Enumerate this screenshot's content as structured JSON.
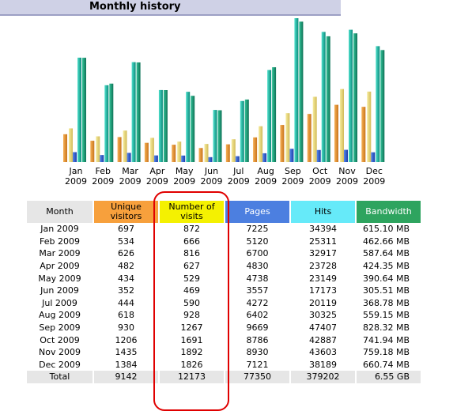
{
  "header": {
    "title": "Monthly history"
  },
  "colors": {
    "unique": "#f7a03c",
    "visits": "#f4f101",
    "pages": "#4c7fe0",
    "hits": "#66eaf9",
    "bandwidth": "#2ea45f",
    "month_header": "#e6e6e6",
    "highlight": "#e00000"
  },
  "chart_data": {
    "type": "bar",
    "categories": [
      "Jan 2009",
      "Feb 2009",
      "Mar 2009",
      "Apr 2009",
      "May 2009",
      "Jun 2009",
      "Jul 2009",
      "Aug 2009",
      "Sep 2009",
      "Oct 2009",
      "Nov 2009",
      "Dec 2009"
    ],
    "category_labels": [
      [
        "Jan",
        "2009"
      ],
      [
        "Feb",
        "2009"
      ],
      [
        "Mar",
        "2009"
      ],
      [
        "Apr",
        "2009"
      ],
      [
        "May",
        "2009"
      ],
      [
        "Jun",
        "2009"
      ],
      [
        "Jul",
        "2009"
      ],
      [
        "Aug",
        "2009"
      ],
      [
        "Sep",
        "2009"
      ],
      [
        "Oct",
        "2009"
      ],
      [
        "Nov",
        "2009"
      ],
      [
        "Dec",
        "2009"
      ]
    ],
    "series": [
      {
        "name": "Unique visitors",
        "values": [
          697,
          534,
          626,
          482,
          434,
          352,
          444,
          618,
          930,
          1206,
          1435,
          1384
        ]
      },
      {
        "name": "Number of visits",
        "values": [
          872,
          666,
          816,
          627,
          529,
          469,
          590,
          928,
          1267,
          1691,
          1892,
          1826
        ]
      },
      {
        "name": "Pages",
        "values": [
          7225,
          5120,
          6700,
          4830,
          4738,
          3557,
          4272,
          6402,
          9669,
          8786,
          8930,
          7121
        ]
      },
      {
        "name": "Hits",
        "values": [
          34394,
          25311,
          32917,
          23728,
          23149,
          17173,
          20119,
          30325,
          47407,
          42887,
          43603,
          38189
        ]
      },
      {
        "name": "Bandwidth",
        "values": [
          615.1,
          462.66,
          587.64,
          424.35,
          390.64,
          305.51,
          368.78,
          559.15,
          828.32,
          741.94,
          759.18,
          660.74
        ]
      }
    ]
  },
  "table": {
    "headers": {
      "month": "Month",
      "unique": "Unique visitors",
      "visits": "Number of visits",
      "pages": "Pages",
      "hits": "Hits",
      "bandwidth": "Bandwidth"
    },
    "rows": [
      {
        "month": "Jan 2009",
        "unique": "697",
        "visits": "872",
        "pages": "7225",
        "hits": "34394",
        "bandwidth": "615.10 MB"
      },
      {
        "month": "Feb 2009",
        "unique": "534",
        "visits": "666",
        "pages": "5120",
        "hits": "25311",
        "bandwidth": "462.66 MB"
      },
      {
        "month": "Mar 2009",
        "unique": "626",
        "visits": "816",
        "pages": "6700",
        "hits": "32917",
        "bandwidth": "587.64 MB"
      },
      {
        "month": "Apr 2009",
        "unique": "482",
        "visits": "627",
        "pages": "4830",
        "hits": "23728",
        "bandwidth": "424.35 MB"
      },
      {
        "month": "May 2009",
        "unique": "434",
        "visits": "529",
        "pages": "4738",
        "hits": "23149",
        "bandwidth": "390.64 MB"
      },
      {
        "month": "Jun 2009",
        "unique": "352",
        "visits": "469",
        "pages": "3557",
        "hits": "17173",
        "bandwidth": "305.51 MB"
      },
      {
        "month": "Jul 2009",
        "unique": "444",
        "visits": "590",
        "pages": "4272",
        "hits": "20119",
        "bandwidth": "368.78 MB"
      },
      {
        "month": "Aug 2009",
        "unique": "618",
        "visits": "928",
        "pages": "6402",
        "hits": "30325",
        "bandwidth": "559.15 MB"
      },
      {
        "month": "Sep 2009",
        "unique": "930",
        "visits": "1267",
        "pages": "9669",
        "hits": "47407",
        "bandwidth": "828.32 MB"
      },
      {
        "month": "Oct 2009",
        "unique": "1206",
        "visits": "1691",
        "pages": "8786",
        "hits": "42887",
        "bandwidth": "741.94 MB"
      },
      {
        "month": "Nov 2009",
        "unique": "1435",
        "visits": "1892",
        "pages": "8930",
        "hits": "43603",
        "bandwidth": "759.18 MB"
      },
      {
        "month": "Dec 2009",
        "unique": "1384",
        "visits": "1826",
        "pages": "7121",
        "hits": "38189",
        "bandwidth": "660.74 MB"
      }
    ],
    "total": {
      "month": "Total",
      "unique": "9142",
      "visits": "12173",
      "pages": "77350",
      "hits": "379202",
      "bandwidth": "6.55 GB"
    }
  }
}
